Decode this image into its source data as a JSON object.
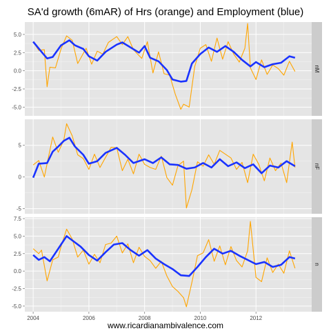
{
  "chart_data": {
    "type": "line",
    "title": "SA'd growth (6mAR) of Hrs (orange) and Employment (blue)",
    "caption": "www.ricardianambivalence.com",
    "colors": {
      "hours": "#FFA500",
      "employment": "#1A33FF",
      "panel_bg": "#E5E5E5",
      "strip_bg": "#CCCCCC",
      "grid": "#FFFFFF"
    },
    "xlim": [
      2003.7,
      2014.0
    ],
    "x_ticks": [
      2004,
      2006,
      2008,
      2010,
      2012
    ],
    "x_tick_labels": [
      "2004",
      "2006",
      "2008",
      "2010",
      "2012"
    ],
    "panels": [
      {
        "strip": "nM",
        "ylim": [
          -6.2,
          6.7
        ],
        "y_ticks": [
          -5,
          -2.5,
          0,
          2.5,
          5
        ],
        "y_tick_labels": [
          "-5.0",
          "-2.5",
          "0.0",
          "2.5",
          "5.0"
        ],
        "series": [
          {
            "name": "Employment",
            "color": "#1A33FF",
            "x": [
              2004.0,
              2004.3,
              2004.5,
              2004.7,
              2005.0,
              2005.3,
              2005.5,
              2005.8,
              2006.0,
              2006.3,
              2006.6,
              2007.0,
              2007.2,
              2007.5,
              2007.8,
              2008.0,
              2008.2,
              2008.5,
              2008.8,
              2009.0,
              2009.3,
              2009.5,
              2009.7,
              2010.0,
              2010.3,
              2010.6,
              2010.9,
              2011.2,
              2011.5,
              2011.8,
              2012.0,
              2012.3,
              2012.6,
              2012.9,
              2013.2,
              2013.4
            ],
            "y": [
              4.0,
              2.6,
              1.7,
              1.9,
              3.5,
              4.2,
              3.5,
              3.0,
              2.0,
              1.4,
              2.6,
              3.6,
              3.9,
              3.2,
              2.5,
              3.4,
              1.8,
              1.3,
              0.1,
              -1.2,
              -1.5,
              -1.4,
              1.0,
              2.3,
              3.2,
              2.6,
              3.4,
              2.6,
              1.5,
              0.6,
              1.2,
              0.5,
              0.9,
              1.1,
              2.0,
              1.8
            ]
          },
          {
            "name": "Hours",
            "color": "#FFA500",
            "x": [
              2004.0,
              2004.2,
              2004.4,
              2004.5,
              2004.6,
              2004.8,
              2005.0,
              2005.2,
              2005.4,
              2005.6,
              2005.9,
              2006.1,
              2006.3,
              2006.5,
              2006.7,
              2007.0,
              2007.2,
              2007.4,
              2007.6,
              2007.9,
              2008.1,
              2008.3,
              2008.5,
              2008.7,
              2008.9,
              2009.1,
              2009.3,
              2009.4,
              2009.6,
              2009.8,
              2010.0,
              2010.2,
              2010.4,
              2010.6,
              2010.8,
              2011.0,
              2011.2,
              2011.4,
              2011.6,
              2011.7,
              2011.8,
              2012.0,
              2012.2,
              2012.4,
              2012.6,
              2012.8,
              2013.0,
              2013.2,
              2013.4
            ],
            "y": [
              4.0,
              2.8,
              2.9,
              -2.2,
              0.5,
              0.4,
              3.0,
              4.8,
              4.2,
              1.0,
              3.1,
              0.9,
              2.7,
              2.3,
              3.9,
              4.7,
              3.6,
              4.7,
              2.9,
              1.7,
              4.0,
              -0.3,
              2.6,
              -0.4,
              -0.6,
              -3.2,
              -5.3,
              -4.6,
              -5.0,
              0.6,
              3.1,
              3.6,
              1.3,
              4.5,
              1.6,
              4.0,
              2.3,
              1.2,
              3.1,
              6.5,
              0.4,
              -1.2,
              1.5,
              -0.5,
              0.8,
              0.3,
              -0.6,
              1.3,
              -0.1
            ]
          }
        ]
      },
      {
        "strip": "nF",
        "ylim": [
          -5.8,
          9.1
        ],
        "y_ticks": [
          -5,
          0,
          5
        ],
        "y_tick_labels": [
          "-5",
          "0",
          "5"
        ],
        "series": [
          {
            "name": "Employment",
            "color": "#1A33FF",
            "x": [
              2004.0,
              2004.2,
              2004.5,
              2004.7,
              2004.9,
              2005.1,
              2005.3,
              2005.5,
              2005.8,
              2006.0,
              2006.3,
              2006.6,
              2007.0,
              2007.3,
              2007.6,
              2008.0,
              2008.3,
              2008.6,
              2008.9,
              2009.2,
              2009.5,
              2009.8,
              2010.1,
              2010.4,
              2010.7,
              2011.0,
              2011.3,
              2011.6,
              2011.9,
              2012.2,
              2012.5,
              2012.8,
              2013.1,
              2013.4
            ],
            "y": [
              -0.1,
              2.1,
              2.2,
              4.0,
              4.8,
              5.7,
              6.2,
              4.8,
              3.5,
              2.1,
              2.5,
              3.8,
              4.6,
              3.5,
              2.2,
              2.8,
              2.2,
              3.1,
              2.0,
              1.9,
              1.3,
              1.5,
              2.2,
              1.5,
              2.8,
              1.7,
              2.3,
              1.4,
              2.0,
              0.6,
              1.8,
              1.5,
              2.5,
              1.7
            ]
          },
          {
            "name": "Hours",
            "color": "#FFA500",
            "x": [
              2004.0,
              2004.2,
              2004.4,
              2004.5,
              2004.7,
              2004.9,
              2005.1,
              2005.2,
              2005.4,
              2005.6,
              2005.8,
              2006.0,
              2006.2,
              2006.4,
              2006.6,
              2006.8,
              2007.0,
              2007.2,
              2007.4,
              2007.6,
              2007.8,
              2008.0,
              2008.2,
              2008.4,
              2008.6,
              2008.8,
              2009.0,
              2009.2,
              2009.4,
              2009.5,
              2009.7,
              2009.9,
              2010.1,
              2010.3,
              2010.5,
              2010.7,
              2010.9,
              2011.1,
              2011.3,
              2011.5,
              2011.7,
              2011.9,
              2012.1,
              2012.3,
              2012.5,
              2012.7,
              2012.9,
              2013.1,
              2013.3,
              2013.4
            ],
            "y": [
              1.9,
              2.6,
              0.0,
              2.1,
              6.3,
              3.9,
              5.8,
              8.4,
              6.5,
              3.5,
              2.9,
              1.2,
              3.6,
              1.5,
              3.1,
              4.7,
              4.6,
              1.0,
              2.8,
              0.5,
              3.6,
              2.0,
              1.5,
              1.2,
              3.3,
              -0.1,
              -1.3,
              1.8,
              2.5,
              -4.9,
              -2.0,
              2.4,
              1.7,
              3.5,
              2.0,
              4.2,
              3.6,
              3.0,
              1.2,
              2.3,
              -0.9,
              3.6,
              2.0,
              -0.6,
              3.0,
              1.0,
              2.2,
              -0.9,
              5.5,
              1.5
            ]
          }
        ]
      },
      {
        "strip": "n",
        "ylim": [
          -5.8,
          7.7
        ],
        "y_ticks": [
          -5,
          -2.5,
          0,
          2.5,
          5,
          7.5
        ],
        "y_tick_labels": [
          "-5.0",
          "-2.5",
          "0.0",
          "2.5",
          "5.0",
          "7.5"
        ],
        "series": [
          {
            "name": "Employment",
            "color": "#1A33FF",
            "x": [
              2004.0,
              2004.2,
              2004.4,
              2004.6,
              2004.8,
              2005.0,
              2005.2,
              2005.4,
              2005.7,
              2006.0,
              2006.3,
              2006.6,
              2006.9,
              2007.2,
              2007.5,
              2007.8,
              2008.1,
              2008.4,
              2008.7,
              2009.0,
              2009.3,
              2009.6,
              2009.9,
              2010.2,
              2010.5,
              2010.8,
              2011.1,
              2011.4,
              2011.7,
              2012.0,
              2012.3,
              2012.6,
              2012.9,
              2013.2,
              2013.4
            ],
            "y": [
              2.3,
              1.6,
              2.0,
              1.4,
              2.6,
              3.8,
              5.0,
              4.4,
              3.5,
              2.3,
              1.5,
              2.7,
              3.8,
              4.0,
              3.0,
              2.2,
              3.0,
              1.8,
              1.0,
              0.3,
              -0.6,
              -0.7,
              0.6,
              2.0,
              3.2,
              2.5,
              2.9,
              2.2,
              1.6,
              1.0,
              1.3,
              0.6,
              0.9,
              2.0,
              1.8
            ]
          },
          {
            "name": "Hours",
            "color": "#FFA500",
            "x": [
              2004.0,
              2004.2,
              2004.3,
              2004.5,
              2004.7,
              2004.9,
              2005.0,
              2005.2,
              2005.4,
              2005.6,
              2005.8,
              2006.0,
              2006.2,
              2006.4,
              2006.6,
              2006.8,
              2007.0,
              2007.2,
              2007.4,
              2007.6,
              2007.8,
              2008.0,
              2008.2,
              2008.4,
              2008.6,
              2008.8,
              2009.0,
              2009.2,
              2009.4,
              2009.5,
              2009.7,
              2009.9,
              2010.1,
              2010.3,
              2010.5,
              2010.7,
              2010.9,
              2011.1,
              2011.3,
              2011.5,
              2011.7,
              2011.8,
              2012.0,
              2012.2,
              2012.4,
              2012.6,
              2012.8,
              2013.0,
              2013.2,
              2013.4
            ],
            "y": [
              3.2,
              2.5,
              3.0,
              -1.4,
              1.6,
              2.0,
              3.5,
              6.0,
              4.6,
              2.0,
              3.0,
              1.0,
              2.4,
              1.2,
              3.8,
              4.0,
              5.0,
              2.6,
              3.9,
              1.2,
              3.4,
              2.1,
              1.5,
              0.4,
              1.4,
              -0.7,
              -2.2,
              -2.9,
              -3.8,
              -5.1,
              -1.6,
              2.2,
              2.6,
              4.5,
              1.4,
              3.6,
              0.9,
              3.5,
              1.5,
              0.6,
              2.9,
              7.1,
              -0.9,
              -1.5,
              1.9,
              -0.2,
              1.0,
              -0.3,
              2.9,
              0.4
            ]
          }
        ]
      }
    ]
  }
}
